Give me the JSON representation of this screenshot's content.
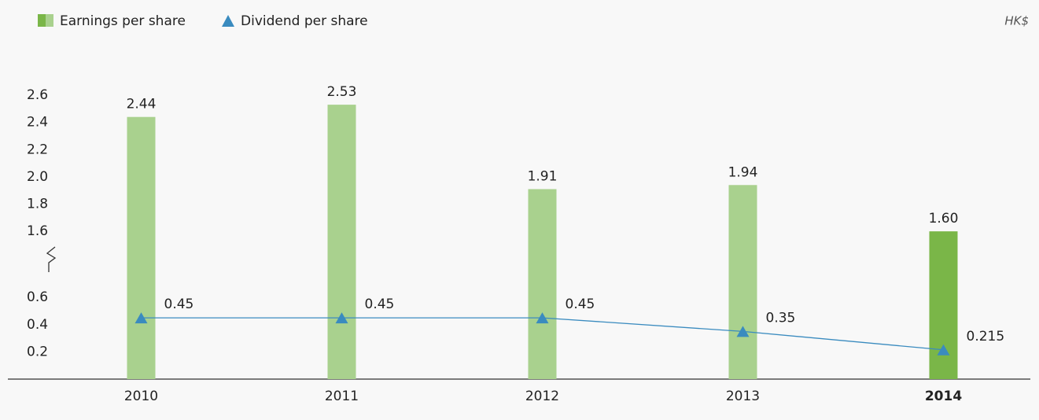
{
  "chart_data": {
    "type": "bar_line",
    "unit_label": "HK$",
    "categories": [
      "2010",
      "2011",
      "2012",
      "2013",
      "2014"
    ],
    "series": [
      {
        "name": "Earnings per share",
        "type": "bar",
        "color": "#a9d18e",
        "colors": [
          "#a9d18e",
          "#a9d18e",
          "#a9d18e",
          "#a9d18e",
          "#7ab648"
        ],
        "values": [
          2.44,
          2.53,
          1.91,
          1.94,
          1.6
        ],
        "value_labels": [
          "2.44",
          "2.53",
          "1.91",
          "1.94",
          "1.60"
        ]
      },
      {
        "name": "Dividend per share",
        "type": "line",
        "color": "#3a8bbf",
        "values": [
          0.45,
          0.45,
          0.45,
          0.35,
          0.215
        ]
      }
    ],
    "ylim": [
      0,
      2.6
    ],
    "axis_break": [
      0.6,
      1.6
    ],
    "yticks": [
      0.2,
      0.4,
      0.6,
      1.6,
      1.8,
      {
        "value": 2,
        "label": "2.0"
      },
      2.2,
      2.4,
      2.6
    ]
  }
}
